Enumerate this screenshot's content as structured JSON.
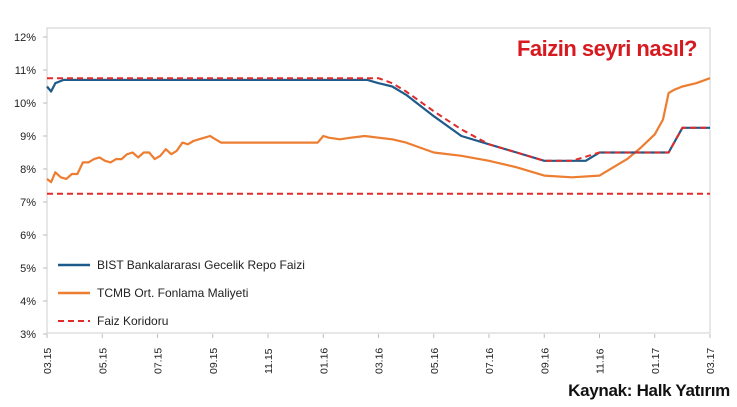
{
  "chart_data": {
    "type": "line",
    "title": "Faizin seyri nasıl?",
    "source": "Kaynak: Halk Yatırım",
    "xlabel": "",
    "ylabel": "",
    "ylim": [
      3,
      12
    ],
    "grid": false,
    "legend_position": "bottom-left",
    "y_ticks": [
      3,
      4,
      5,
      6,
      7,
      8,
      9,
      10,
      11,
      12
    ],
    "y_tick_labels": [
      "3%",
      "4%",
      "5%",
      "6%",
      "7%",
      "8%",
      "9%",
      "10%",
      "11%",
      "12%"
    ],
    "x_tick_labels": [
      "03.15",
      "05.15",
      "07.15",
      "09.15",
      "11.15",
      "01.16",
      "03.16",
      "05.16",
      "07.16",
      "09.16",
      "11.16",
      "01.17",
      "03.17"
    ],
    "x_tick_positions": [
      0,
      2,
      4,
      6,
      8,
      10,
      12,
      14,
      16,
      18,
      20,
      22,
      24
    ],
    "series": [
      {
        "name": "BIST Bankalararası Gecelik Repo Faizi",
        "color": "#1f5b8a",
        "dash": "solid",
        "x": [
          0,
          0.15,
          0.3,
          0.6,
          1,
          2,
          4,
          6,
          8,
          10,
          11,
          11.3,
          11.6,
          12,
          12.5,
          13,
          14,
          15,
          16,
          17,
          18,
          18.5,
          19,
          19.5,
          20,
          21,
          22,
          22.3,
          22.5,
          23,
          24
        ],
        "y": [
          10.5,
          10.35,
          10.6,
          10.7,
          10.7,
          10.7,
          10.7,
          10.7,
          10.7,
          10.7,
          10.7,
          10.7,
          10.7,
          10.6,
          10.5,
          10.25,
          9.6,
          9.0,
          8.75,
          8.5,
          8.25,
          8.25,
          8.25,
          8.25,
          8.5,
          8.5,
          8.5,
          8.5,
          8.5,
          9.25,
          9.25
        ]
      },
      {
        "name": "TCMB Ort. Fonlama Maliyeti",
        "color": "#ed7d31",
        "dash": "solid",
        "x": [
          0,
          0.15,
          0.3,
          0.5,
          0.7,
          0.9,
          1.1,
          1.3,
          1.5,
          1.7,
          1.9,
          2.1,
          2.3,
          2.5,
          2.7,
          2.9,
          3.1,
          3.3,
          3.5,
          3.7,
          3.9,
          4.1,
          4.3,
          4.5,
          4.7,
          4.9,
          5.1,
          5.3,
          5.5,
          5.7,
          5.9,
          6.1,
          6.3,
          6.6,
          6.9,
          7.2,
          7.5,
          8,
          9,
          9.8,
          10,
          10.2,
          10.6,
          11,
          11.5,
          12,
          12.5,
          13,
          14,
          15,
          16,
          17,
          18,
          19,
          20,
          21,
          21.5,
          22,
          22.3,
          22.5,
          22.7,
          23,
          23.5,
          24
        ],
        "y": [
          7.7,
          7.6,
          7.9,
          7.75,
          7.7,
          7.85,
          7.85,
          8.2,
          8.2,
          8.3,
          8.35,
          8.25,
          8.2,
          8.3,
          8.3,
          8.45,
          8.5,
          8.35,
          8.5,
          8.5,
          8.3,
          8.4,
          8.6,
          8.45,
          8.55,
          8.8,
          8.75,
          8.85,
          8.9,
          8.95,
          9.0,
          8.9,
          8.8,
          8.8,
          8.8,
          8.8,
          8.8,
          8.8,
          8.8,
          8.8,
          9.0,
          8.95,
          8.9,
          8.95,
          9.0,
          8.95,
          8.9,
          8.8,
          8.5,
          8.4,
          8.25,
          8.05,
          7.8,
          7.75,
          7.8,
          8.3,
          8.65,
          9.05,
          9.5,
          10.3,
          10.4,
          10.5,
          10.6,
          10.75
        ]
      },
      {
        "name": "Faiz Koridoru",
        "color": "#e02b2b",
        "dash": "dashed",
        "x": [
          0,
          24
        ],
        "y": [
          7.25,
          7.25
        ]
      },
      {
        "name": "Faiz Koridoru upper",
        "legend": false,
        "color": "#e02b2b",
        "dash": "dashed",
        "x": [
          0,
          0.3,
          12,
          12.5,
          13,
          14,
          15,
          16,
          17,
          18,
          19,
          20,
          21,
          22,
          22.5,
          23,
          24
        ],
        "y": [
          10.75,
          10.75,
          10.75,
          10.6,
          10.35,
          9.75,
          9.2,
          8.75,
          8.5,
          8.25,
          8.25,
          8.5,
          8.5,
          8.5,
          8.5,
          9.25,
          9.25
        ]
      }
    ]
  }
}
